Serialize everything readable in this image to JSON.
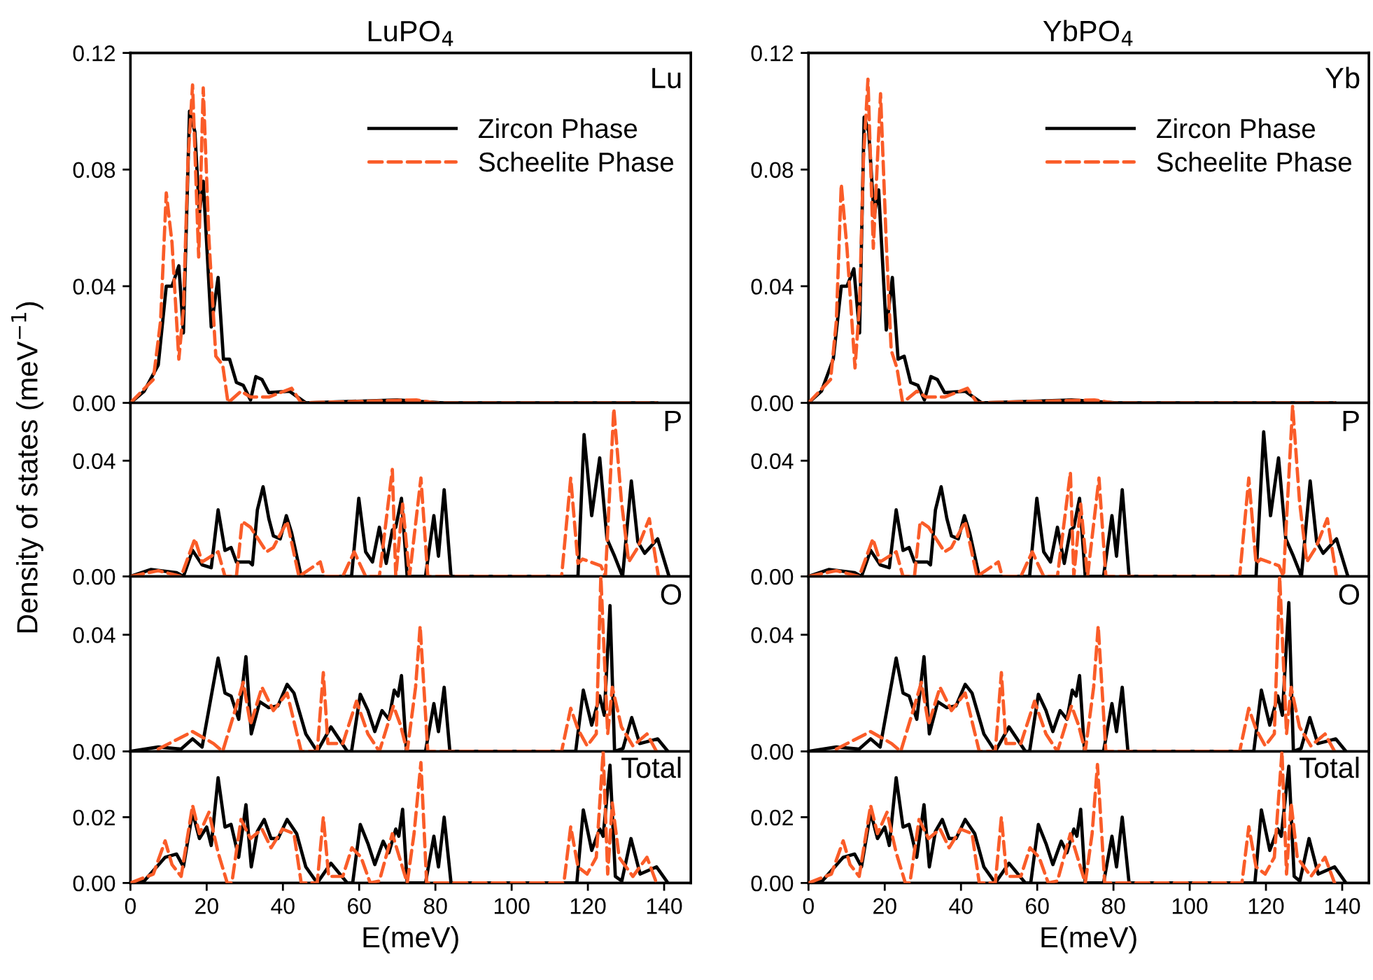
{
  "chart_data": [
    {
      "type": "line",
      "title": "LuPO$_{4}$",
      "ylabel": "Density of states (meV$^{−1}$)",
      "annotations": [
        "Lu"
      ],
      "legend": "top right",
      "tick_labels": "y",
      "xlim": [
        0,
        147
      ],
      "xticks": [
        0,
        20,
        40,
        60,
        80,
        100,
        120,
        140
      ],
      "ylim": [
        0,
        0.12
      ],
      "yticks": [
        {
          "value": 0,
          "label": "0.00"
        },
        {
          "value": 0.04,
          "label": "0.04"
        },
        {
          "value": 0.08,
          "label": "0.08"
        },
        {
          "value": 0.12,
          "label": "0.12"
        }
      ],
      "series": [
        {
          "name": "Zircon Phase",
          "color": "#000000",
          "line_style": "solid",
          "x": [
            0,
            3.6,
            7.3,
            9.4,
            10.9,
            12.7,
            13.9,
            15.5,
            16.9,
            18.1,
            19.1,
            21.2,
            23.0,
            24.4,
            26.0,
            27.8,
            29.6,
            31.5,
            32.9,
            34.5,
            36.3,
            41.7,
            46,
            70,
            82,
            138
          ],
          "values": [
            0,
            0.004,
            0.013,
            0.04,
            0.04,
            0.047,
            0.024,
            0.1,
            0.093,
            0.065,
            0.076,
            0.026,
            0.043,
            0.015,
            0.015,
            0.007,
            0.006,
            0.001,
            0.009,
            0.008,
            0.0035,
            0.004,
            0,
            0.001,
            0,
            0
          ]
        },
        {
          "name": "Scheelite Phase",
          "color": "#fa5c28",
          "line_style": "dashed",
          "x": [
            0,
            6.0,
            7.9,
            9.4,
            10.9,
            12.7,
            13.9,
            15.1,
            16.3,
            17.9,
            19.1,
            20.6,
            22.4,
            24.2,
            25.6,
            29,
            31.5,
            36.3,
            42.3,
            44.8,
            75,
            80,
            138
          ],
          "values": [
            0,
            0.008,
            0.028,
            0.072,
            0.055,
            0.015,
            0.032,
            0.083,
            0.109,
            0.05,
            0.108,
            0.056,
            0.016,
            0.013,
            0,
            0.004,
            0.002,
            0.002,
            0.005,
            0,
            0.001,
            0,
            0
          ]
        }
      ]
    },
    {
      "type": "line",
      "title": "YbPO$_{4}$",
      "annotations": [
        "Yb"
      ],
      "legend": "top right",
      "tick_labels": "y",
      "xlim": [
        0,
        147
      ],
      "xticks": [
        0,
        20,
        40,
        60,
        80,
        100,
        120,
        140
      ],
      "ylim": [
        0,
        0.12
      ],
      "yticks": [
        {
          "value": 0,
          "label": "0.00"
        },
        {
          "value": 0.04,
          "label": "0.04"
        },
        {
          "value": 0.08,
          "label": "0.08"
        },
        {
          "value": 0.12,
          "label": "0.12"
        }
      ],
      "series": [
        {
          "name": "Zircon Phase",
          "color": "#000000",
          "line_style": "solid",
          "x": [
            0,
            3.4,
            6.5,
            8.6,
            10.1,
            11.9,
            13.4,
            14.6,
            15.8,
            17.2,
            18.4,
            20.4,
            22.0,
            23.5,
            25.1,
            26.8,
            28.7,
            30.4,
            32.1,
            33.8,
            35.7,
            41.1,
            45.4,
            69,
            81,
            138
          ],
          "values": [
            0,
            0.004,
            0.015,
            0.04,
            0.04,
            0.046,
            0.024,
            0.098,
            0.093,
            0.064,
            0.073,
            0.025,
            0.043,
            0.015,
            0.016,
            0.007,
            0.006,
            0.001,
            0.009,
            0.008,
            0.0035,
            0.004,
            0,
            0.001,
            0,
            0
          ]
        },
        {
          "name": "Scheelite Phase",
          "color": "#fa5c28",
          "line_style": "dashed",
          "x": [
            0,
            5.8,
            7.3,
            8.6,
            10.1,
            12.2,
            13.4,
            14.4,
            15.6,
            17.0,
            18.9,
            20.4,
            21.7,
            23.2,
            24.7,
            28.4,
            30.8,
            35.7,
            41.7,
            44.2,
            75,
            80,
            138
          ],
          "values": [
            0,
            0.008,
            0.028,
            0.075,
            0.053,
            0.012,
            0.034,
            0.083,
            0.111,
            0.053,
            0.106,
            0.055,
            0.018,
            0.012,
            0,
            0.004,
            0.002,
            0.002,
            0.005,
            0,
            0.001,
            0,
            0
          ]
        }
      ]
    },
    {
      "type": "line",
      "annotations": [
        "P"
      ],
      "tick_labels": "y",
      "xlim": [
        0,
        147
      ],
      "xticks": [
        0,
        20,
        40,
        60,
        80,
        100,
        120,
        140
      ],
      "ylim": [
        0,
        0.06
      ],
      "yticks": [
        {
          "value": 0,
          "label": "0.00"
        },
        {
          "value": 0.04,
          "label": "0.04"
        }
      ],
      "series": [
        {
          "color": "#000000",
          "line_style": "solid",
          "x": [
            0,
            5.4,
            12.1,
            13.9,
            16.3,
            18.8,
            21.2,
            23,
            24.8,
            26.4,
            27.8,
            31.2,
            32,
            33.3,
            34.8,
            36.3,
            37.5,
            39.3,
            40.9,
            42.3,
            44.8,
            58,
            59.9,
            61.7,
            63.5,
            65.3,
            67.1,
            68.7,
            69.6,
            71.1,
            72.6,
            77.4,
            79.6,
            80.8,
            82.3,
            84.1,
            117.4,
            119,
            121,
            123.1,
            125,
            127,
            129.1,
            131.4,
            133.1,
            134.9,
            138.3,
            141.3
          ],
          "values": [
            0,
            0.0024,
            0.0013,
            0,
            0.009,
            0.004,
            0.003,
            0.023,
            0.009,
            0.01,
            0.005,
            0.005,
            0.004,
            0.023,
            0.031,
            0.02,
            0.014,
            0.013,
            0.021,
            0.015,
            0,
            0,
            0.027,
            0.0085,
            0.005,
            0.017,
            0.0045,
            0.016,
            0.017,
            0.027,
            0,
            0,
            0.021,
            0.007,
            0.03,
            0,
            0,
            0.049,
            0.021,
            0.041,
            0.013,
            0.007,
            0,
            0.033,
            0.012,
            0.008,
            0.013,
            0
          ]
        },
        {
          "color": "#fa5c28",
          "line_style": "dashed",
          "x": [
            0,
            7.3,
            13.3,
            16.9,
            18.8,
            23,
            24.8,
            27.8,
            29.3,
            31.5,
            35.7,
            37.5,
            41.1,
            44.2,
            49.8,
            50.8,
            55.7,
            58.7,
            61.7,
            65.3,
            68.7,
            69.6,
            71.4,
            73.2,
            76.2,
            78,
            113.1,
            115.5,
            117.4,
            118.6,
            123.4,
            124.6,
            126.8,
            128.8,
            130.7,
            133.1,
            136.1,
            138.5
          ],
          "values": [
            0,
            0.002,
            0,
            0.013,
            0.005,
            0.0085,
            0,
            0,
            0.019,
            0.017,
            0.0085,
            0.01,
            0.019,
            0,
            0.005,
            0,
            0,
            0.0085,
            0,
            0,
            0.037,
            0,
            0.025,
            0,
            0.034,
            0,
            0,
            0.034,
            0.0045,
            0.006,
            0.0037,
            0,
            0.058,
            0.026,
            0.005,
            0.01,
            0.02,
            0
          ]
        }
      ]
    },
    {
      "type": "line",
      "annotations": [
        "P"
      ],
      "tick_labels": "y",
      "xlim": [
        0,
        147
      ],
      "xticks": [
        0,
        20,
        40,
        60,
        80,
        100,
        120,
        140
      ],
      "ylim": [
        0,
        0.06
      ],
      "yticks": [
        {
          "value": 0,
          "label": "0.00"
        },
        {
          "value": 0.04,
          "label": "0.04"
        }
      ],
      "series": [
        {
          "color": "#000000",
          "line_style": "solid",
          "x": [
            0,
            5.4,
            12.1,
            13.9,
            16.3,
            18.8,
            21.2,
            23,
            24.8,
            26.4,
            27.8,
            31.2,
            32,
            33.3,
            34.8,
            36.3,
            37.5,
            39.3,
            40.9,
            42.3,
            44.8,
            58,
            59.9,
            61.7,
            63.5,
            65.3,
            67.1,
            68.7,
            69.6,
            71.1,
            72.6,
            77.4,
            79.6,
            80.8,
            82.3,
            84.1,
            117.4,
            119.4,
            121.2,
            123.3,
            125.2,
            127.2,
            129.3,
            131.6,
            133.3,
            135,
            138.5,
            141.5
          ],
          "values": [
            0,
            0.0024,
            0.0013,
            0,
            0.009,
            0.004,
            0.003,
            0.023,
            0.009,
            0.01,
            0.005,
            0.005,
            0.004,
            0.023,
            0.031,
            0.02,
            0.014,
            0.013,
            0.021,
            0.015,
            0,
            0,
            0.027,
            0.0085,
            0.005,
            0.017,
            0.0045,
            0.016,
            0.017,
            0.027,
            0,
            0,
            0.021,
            0.007,
            0.03,
            0,
            0,
            0.05,
            0.021,
            0.041,
            0.013,
            0.007,
            0,
            0.033,
            0.012,
            0.008,
            0.013,
            0
          ]
        },
        {
          "color": "#fa5c28",
          "line_style": "dashed",
          "x": [
            0,
            7.3,
            13.3,
            16.9,
            18.8,
            23,
            24.8,
            27.8,
            29.3,
            31.5,
            35.7,
            37.5,
            41.1,
            44.2,
            49.8,
            50.8,
            55.7,
            58.7,
            61.7,
            65.3,
            68.7,
            69.6,
            71.4,
            73.2,
            76.2,
            78,
            113.1,
            115.5,
            117.4,
            118.6,
            123.4,
            124.6,
            127,
            128.8,
            130.7,
            133.1,
            136.1,
            138.5
          ],
          "values": [
            0,
            0.002,
            0,
            0.013,
            0.005,
            0.0085,
            0,
            0,
            0.019,
            0.017,
            0.0085,
            0.01,
            0.019,
            0,
            0.005,
            0,
            0,
            0.0085,
            0,
            0,
            0.036,
            0,
            0.025,
            0,
            0.034,
            0,
            0,
            0.034,
            0.0045,
            0.006,
            0.0037,
            0,
            0.059,
            0.026,
            0.005,
            0.01,
            0.02,
            0
          ]
        }
      ]
    },
    {
      "type": "line",
      "annotations": [
        "O"
      ],
      "tick_labels": "y",
      "xlim": [
        0,
        147
      ],
      "xticks": [
        0,
        20,
        40,
        60,
        80,
        100,
        120,
        140
      ],
      "ylim": [
        0,
        0.06
      ],
      "yticks": [
        {
          "value": 0,
          "label": "0.00"
        },
        {
          "value": 0.04,
          "label": "0.04"
        }
      ],
      "series": [
        {
          "color": "#000000",
          "line_style": "solid",
          "x": [
            0,
            7.3,
            13.3,
            16.3,
            18.8,
            23,
            24.8,
            26.4,
            28.4,
            30.3,
            31.7,
            33.9,
            36.3,
            38.7,
            41.1,
            42.9,
            46,
            49,
            52.6,
            56.9,
            58,
            60.3,
            62.3,
            64.1,
            66,
            67.8,
            69.2,
            70.2,
            71.1,
            72.4,
            77.4,
            79.6,
            80.8,
            82.3,
            83.8,
            116.8,
            118.8,
            121,
            123.1,
            124.3,
            125.8,
            127,
            129.2,
            131.5,
            133.6,
            138.3,
            141
          ],
          "values": [
            0,
            0.0015,
            0.0008,
            0.0043,
            0.0015,
            0.032,
            0.02,
            0.019,
            0.011,
            0.0325,
            0.006,
            0.017,
            0.015,
            0.0156,
            0.023,
            0.02,
            0.006,
            0,
            0.0084,
            0,
            0,
            0.0196,
            0.014,
            0.0068,
            0.014,
            0.011,
            0.021,
            0.019,
            0.026,
            0,
            0,
            0.0164,
            0.0068,
            0.022,
            0,
            0,
            0.021,
            0.009,
            0.019,
            0.0124,
            0.05,
            0,
            0.001,
            0.0116,
            0.0027,
            0.0043,
            0
          ]
        },
        {
          "color": "#fa5c28",
          "line_style": "dashed",
          "x": [
            7.3,
            16.3,
            21.8,
            24.2,
            27.8,
            29.6,
            31.5,
            34.5,
            37.5,
            41.1,
            44.8,
            49,
            50.6,
            51.8,
            55.7,
            59.3,
            62.3,
            65.3,
            69,
            70.8,
            72.6,
            74.8,
            76,
            78,
            113.1,
            115.5,
            117.4,
            119.8,
            122.2,
            123.4,
            125.2,
            126.4,
            128.8,
            131.8,
            135.5,
            138
          ],
          "values": [
            0.0008,
            0.0068,
            0.0027,
            0,
            0.0156,
            0.0237,
            0.0092,
            0.022,
            0.014,
            0.02,
            0,
            0,
            0.027,
            0.0027,
            0.0027,
            0.0172,
            0.006,
            0,
            0.0156,
            0.0092,
            0,
            0.022,
            0.043,
            0,
            0,
            0.0148,
            0.0076,
            0.0019,
            0.006,
            0.06,
            0.006,
            0.022,
            0.0084,
            0.0019,
            0.006,
            0
          ]
        }
      ]
    },
    {
      "type": "line",
      "annotations": [
        "O"
      ],
      "tick_labels": "y",
      "xlim": [
        0,
        147
      ],
      "xticks": [
        0,
        20,
        40,
        60,
        80,
        100,
        120,
        140
      ],
      "ylim": [
        0,
        0.06
      ],
      "yticks": [
        {
          "value": 0,
          "label": "0.00"
        },
        {
          "value": 0.04,
          "label": "0.04"
        }
      ],
      "series": [
        {
          "color": "#000000",
          "line_style": "solid",
          "x": [
            0,
            7.3,
            13.3,
            16.3,
            18.8,
            23,
            24.8,
            26.4,
            28.4,
            30.3,
            31.7,
            33.9,
            36.3,
            38.7,
            41.1,
            42.9,
            46,
            49,
            52.6,
            56.9,
            58,
            60.3,
            62.3,
            64.1,
            66,
            67.8,
            69.2,
            70.2,
            71.1,
            72.4,
            77.4,
            79.6,
            80.8,
            82.3,
            83.8,
            116.8,
            118.8,
            121,
            123.1,
            124.3,
            126,
            127.2,
            129.2,
            131.5,
            133.6,
            138.3,
            141
          ],
          "values": [
            0,
            0.0015,
            0.0008,
            0.0043,
            0.0015,
            0.032,
            0.02,
            0.019,
            0.011,
            0.0325,
            0.006,
            0.017,
            0.015,
            0.0156,
            0.023,
            0.02,
            0.006,
            0,
            0.0084,
            0,
            0,
            0.0196,
            0.014,
            0.0068,
            0.014,
            0.011,
            0.021,
            0.019,
            0.026,
            0,
            0,
            0.0164,
            0.0068,
            0.022,
            0,
            0,
            0.021,
            0.009,
            0.019,
            0.0124,
            0.051,
            0,
            0.001,
            0.0116,
            0.0027,
            0.0043,
            0
          ]
        },
        {
          "color": "#fa5c28",
          "line_style": "dashed",
          "x": [
            7.3,
            16.3,
            21.8,
            24.2,
            27.8,
            29.6,
            31.5,
            34.5,
            37.5,
            41.1,
            44.8,
            49,
            50.6,
            51.8,
            55.7,
            59.3,
            62.3,
            65.3,
            69,
            70.8,
            72.6,
            74.8,
            76,
            78,
            113.1,
            115.5,
            117.4,
            119.8,
            122.2,
            123.6,
            125.4,
            126.6,
            128.8,
            131.8,
            135.5,
            138
          ],
          "values": [
            0.0008,
            0.0068,
            0.0027,
            0,
            0.0156,
            0.0237,
            0.0092,
            0.022,
            0.014,
            0.02,
            0,
            0,
            0.027,
            0.0027,
            0.0027,
            0.0172,
            0.006,
            0,
            0.0156,
            0.0092,
            0,
            0.022,
            0.043,
            0,
            0,
            0.0148,
            0.0076,
            0.0019,
            0.006,
            0.06,
            0.006,
            0.022,
            0.0084,
            0.0019,
            0.006,
            0
          ]
        }
      ]
    },
    {
      "type": "line",
      "xlabel": "E(meV)",
      "annotations": [
        "Total"
      ],
      "xlim": [
        0,
        147
      ],
      "xticks": [
        0,
        20,
        40,
        60,
        80,
        100,
        120,
        140
      ],
      "ylim": [
        0,
        0.04
      ],
      "yticks": [
        {
          "value": 0,
          "label": "0.00"
        },
        {
          "value": 0.02,
          "label": "0.02"
        }
      ],
      "series": [
        {
          "color": "#000000",
          "line_style": "solid",
          "x": [
            0,
            3.6,
            9.1,
            12.1,
            13.9,
            16.3,
            18.1,
            20,
            21.2,
            23,
            24.8,
            26.4,
            28.4,
            30.3,
            31.7,
            33.3,
            35.1,
            36.9,
            38.7,
            41.1,
            43.6,
            46,
            49,
            52.6,
            56.9,
            58.3,
            60.3,
            62.3,
            64.1,
            66.3,
            67.8,
            69.6,
            70.4,
            71.4,
            72.6,
            77.4,
            79.6,
            80.8,
            82.3,
            84.1,
            117.1,
            118.8,
            121,
            123.1,
            124,
            125.8,
            127.2,
            128.9,
            131.3,
            133.7,
            138,
            141
          ],
          "values": [
            0,
            0.0006,
            0.0078,
            0.0088,
            0.0049,
            0.0215,
            0.0135,
            0.017,
            0.0114,
            0.032,
            0.017,
            0.0178,
            0.0078,
            0.0238,
            0.0049,
            0.0157,
            0.0193,
            0.0135,
            0.0135,
            0.0193,
            0.015,
            0.0049,
            0,
            0.006,
            0,
            0,
            0.0178,
            0.012,
            0.0056,
            0.0127,
            0.0092,
            0.0164,
            0.0142,
            0.0224,
            0,
            0,
            0.0142,
            0.0049,
            0.02,
            0,
            0,
            0.0222,
            0.0099,
            0.0164,
            0.0142,
            0.0358,
            0.002,
            0.0006,
            0.0135,
            0.0027,
            0.0049,
            0
          ]
        },
        {
          "color": "#fa5c28",
          "line_style": "dashed",
          "x": [
            0,
            6,
            9.1,
            10.9,
            13.3,
            16.3,
            18.1,
            20.6,
            23,
            25.4,
            26.6,
            29,
            31.5,
            34.5,
            36.9,
            39.9,
            42.9,
            44.8,
            49,
            50.6,
            52,
            55.7,
            58.1,
            60.5,
            62.9,
            65.3,
            68.7,
            70.2,
            72.6,
            74.4,
            76.2,
            77.7,
            113.7,
            115.5,
            117.4,
            119.8,
            122.2,
            124,
            125.2,
            126.4,
            128.2,
            131.8,
            135.5,
            138
          ],
          "values": [
            0,
            0.0027,
            0.0128,
            0.0056,
            0.002,
            0.0236,
            0.015,
            0.0215,
            0.0092,
            0,
            0,
            0.0193,
            0.0135,
            0.0164,
            0.0107,
            0.0164,
            0.015,
            0,
            0,
            0.02,
            0.002,
            0.002,
            0.0107,
            0.0078,
            0,
            0.0006,
            0.015,
            0.0092,
            0,
            0.015,
            0.0366,
            0,
            0,
            0.0171,
            0.0049,
            0.0027,
            0.0078,
            0.04,
            0.0027,
            0.0243,
            0.0078,
            0.002,
            0.0078,
            0
          ]
        }
      ]
    },
    {
      "type": "line",
      "xlabel": "E(meV)",
      "annotations": [
        "Total"
      ],
      "xlim": [
        0,
        147
      ],
      "xticks": [
        0,
        20,
        40,
        60,
        80,
        100,
        120,
        140
      ],
      "ylim": [
        0,
        0.04
      ],
      "yticks": [
        {
          "value": 0,
          "label": "0.00"
        },
        {
          "value": 0.02,
          "label": "0.02"
        }
      ],
      "series": [
        {
          "color": "#000000",
          "line_style": "solid",
          "x": [
            0,
            3.6,
            9.1,
            12.1,
            13.9,
            16.3,
            18.1,
            20,
            21.2,
            23,
            24.8,
            26.4,
            28.4,
            30.3,
            31.7,
            33.3,
            35.1,
            36.9,
            38.7,
            41.1,
            43.6,
            46,
            49,
            52.6,
            56.9,
            58.3,
            60.3,
            62.3,
            64.1,
            66.3,
            67.8,
            69.6,
            70.4,
            71.4,
            72.6,
            77.4,
            79.6,
            80.8,
            82.3,
            84.1,
            117.1,
            118.8,
            121,
            123.1,
            124,
            126,
            127.4,
            128.9,
            131.3,
            133.7,
            138,
            141
          ],
          "values": [
            0,
            0.0006,
            0.0078,
            0.0088,
            0.0049,
            0.0215,
            0.0135,
            0.017,
            0.0114,
            0.032,
            0.017,
            0.0178,
            0.0078,
            0.0238,
            0.0049,
            0.0157,
            0.0193,
            0.0135,
            0.0135,
            0.0193,
            0.015,
            0.0049,
            0,
            0.006,
            0,
            0,
            0.0178,
            0.012,
            0.0056,
            0.0127,
            0.0092,
            0.0164,
            0.0142,
            0.0224,
            0,
            0,
            0.0142,
            0.0049,
            0.02,
            0,
            0,
            0.0222,
            0.0099,
            0.0164,
            0.0142,
            0.0355,
            0.002,
            0.0006,
            0.0135,
            0.0027,
            0.0049,
            0
          ]
        },
        {
          "color": "#fa5c28",
          "line_style": "dashed",
          "x": [
            0,
            6,
            9.1,
            10.9,
            13.3,
            16.3,
            18.1,
            20.6,
            23,
            25.4,
            26.6,
            29,
            31.5,
            34.5,
            36.9,
            39.9,
            42.9,
            44.8,
            49,
            50.6,
            52,
            55.7,
            58.1,
            60.5,
            62.9,
            65.3,
            68.7,
            70.2,
            72.6,
            74.4,
            75.8,
            77.7,
            113.7,
            115.5,
            117.4,
            119.8,
            122.2,
            124.2,
            125.4,
            126.6,
            128.2,
            131.8,
            135.5,
            138
          ],
          "values": [
            0,
            0.0027,
            0.0128,
            0.0056,
            0.002,
            0.0236,
            0.015,
            0.0215,
            0.0092,
            0,
            0,
            0.0193,
            0.0135,
            0.0164,
            0.0107,
            0.0164,
            0.015,
            0,
            0,
            0.02,
            0.002,
            0.002,
            0.0107,
            0.0078,
            0,
            0.0006,
            0.015,
            0.0092,
            0,
            0.015,
            0.036,
            0,
            0,
            0.0171,
            0.0049,
            0.0027,
            0.0078,
            0.04,
            0.0027,
            0.0243,
            0.0078,
            0.002,
            0.0078,
            0
          ]
        }
      ]
    }
  ]
}
